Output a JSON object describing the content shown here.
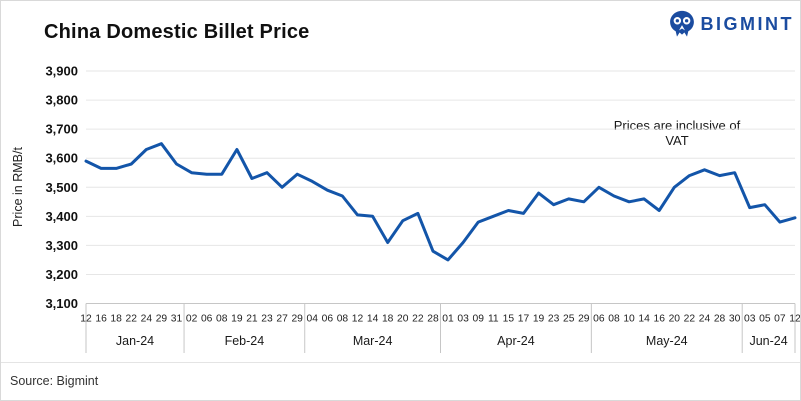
{
  "header": {
    "title": "China Domestic Billet Price",
    "brand": "BIGMINT",
    "brand_color": "#1b4ca0"
  },
  "footer": {
    "source": "Source: Bigmint"
  },
  "chart_data": {
    "type": "line",
    "title": "China Domestic Billet Price",
    "series_name": "China domestic billet price",
    "ylabel": "Price in RMB/t",
    "annotation": "Prices are inclusive of VAT",
    "ylim": [
      3100,
      3900
    ],
    "ytick_step": 100,
    "yticks": [
      "3,900",
      "3,800",
      "3,700",
      "3,600",
      "3,500",
      "3,400",
      "3,300",
      "3,200",
      "3,100"
    ],
    "grid": true,
    "legend": "none",
    "line_color": "#1355a9",
    "grid_color": "#e6e6e6",
    "axis_color": "#c6c6c6",
    "months": [
      {
        "label": "Jan-24",
        "days": [
          "12",
          "16",
          "18",
          "22",
          "24",
          "29",
          "31"
        ],
        "values": [
          3590,
          3565,
          3565,
          3580,
          3630,
          3650,
          3580
        ]
      },
      {
        "label": "Feb-24",
        "days": [
          "02",
          "06",
          "08",
          "19",
          "21",
          "23",
          "27",
          "29"
        ],
        "values": [
          3550,
          3545,
          3545,
          3630,
          3530,
          3550,
          3500,
          3545
        ]
      },
      {
        "label": "Mar-24",
        "days": [
          "04",
          "06",
          "08",
          "12",
          "14",
          "18",
          "20",
          "22",
          "28"
        ],
        "values": [
          3520,
          3490,
          3470,
          3405,
          3400,
          3310,
          3385,
          3410,
          3280
        ]
      },
      {
        "label": "Apr-24",
        "days": [
          "01",
          "03",
          "09",
          "11",
          "15",
          "17",
          "19",
          "23",
          "25",
          "29"
        ],
        "values": [
          3250,
          3310,
          3380,
          3400,
          3420,
          3410,
          3480,
          3440,
          3460,
          3450
        ]
      },
      {
        "label": "May-24",
        "days": [
          "06",
          "08",
          "10",
          "14",
          "16",
          "20",
          "22",
          "24",
          "28",
          "30"
        ],
        "values": [
          3500,
          3470,
          3450,
          3460,
          3420,
          3500,
          3540,
          3560,
          3540,
          3550
        ]
      },
      {
        "label": "Jun-24",
        "days": [
          "03",
          "05",
          "07",
          "12"
        ],
        "values": [
          3430,
          3440,
          3380,
          3395
        ]
      }
    ]
  }
}
